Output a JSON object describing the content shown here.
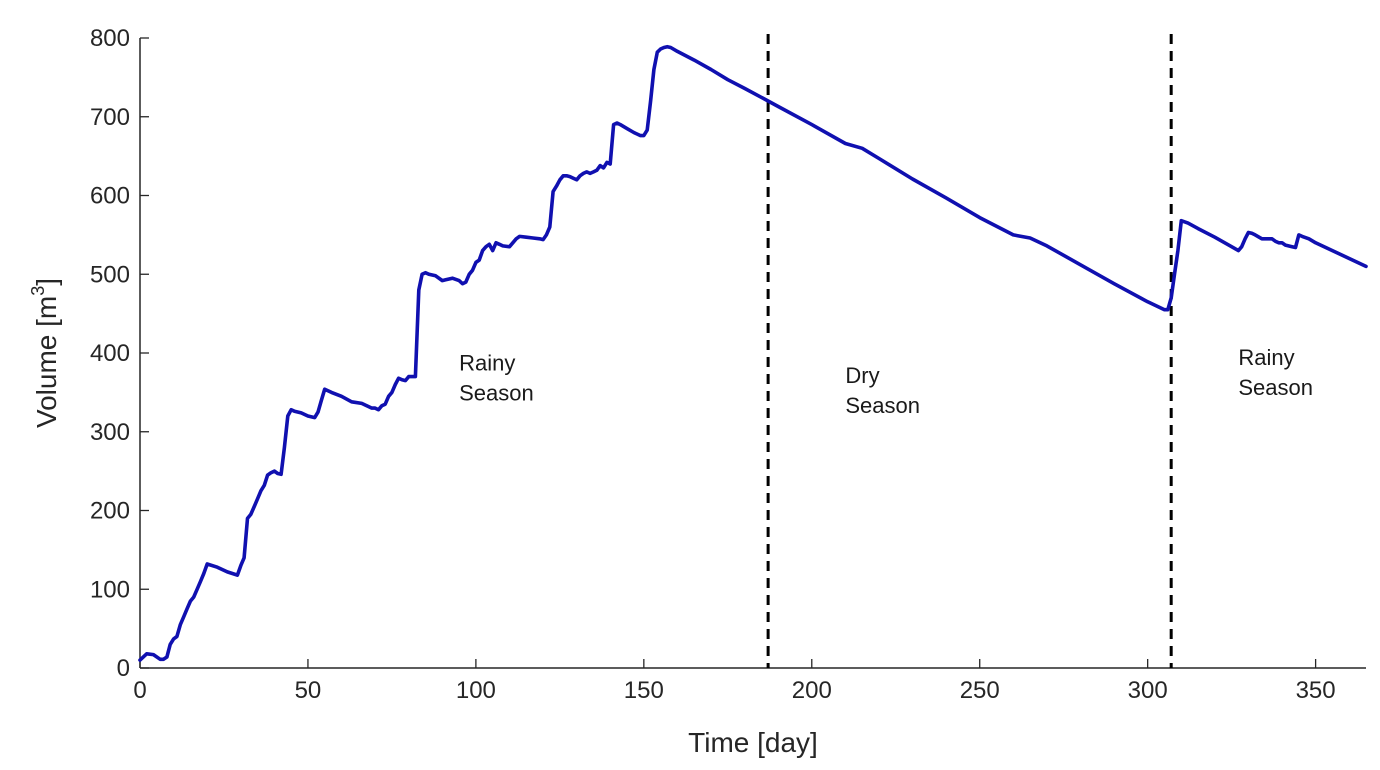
{
  "chart_data": {
    "type": "line",
    "title": "",
    "xlabel": "Time [day]",
    "ylabel_main": "Volume [m",
    "ylabel_sup": "3",
    "ylabel_tail": "]",
    "xlim": [
      0,
      365
    ],
    "ylim": [
      0,
      800
    ],
    "xticks": [
      0,
      50,
      100,
      150,
      200,
      250,
      300,
      350
    ],
    "yticks": [
      0,
      100,
      200,
      300,
      400,
      500,
      600,
      700,
      800
    ],
    "grid": false,
    "line_color": "#1010b0",
    "vline_color": "#000000",
    "vlines": [
      187,
      307
    ],
    "annotations": [
      {
        "lines": [
          "Rainy",
          "Season"
        ],
        "x": 95,
        "y": 378
      },
      {
        "lines": [
          "Dry",
          "Season"
        ],
        "x": 210,
        "y": 362
      },
      {
        "lines": [
          "Rainy",
          "Season"
        ],
        "x": 327,
        "y": 385
      }
    ],
    "series": [
      {
        "x": [
          0,
          2,
          4,
          6,
          7,
          8,
          9,
          10,
          11,
          12,
          13,
          14,
          15,
          16,
          17,
          18,
          19,
          20,
          23,
          26,
          29,
          30,
          31,
          32,
          33,
          34,
          35,
          36,
          37,
          38,
          39,
          40,
          41,
          42,
          43,
          44,
          45,
          46,
          48,
          50,
          52,
          53,
          54,
          55,
          57,
          60,
          63,
          66,
          69,
          70,
          71,
          72,
          73,
          74,
          75,
          76,
          77,
          78,
          79,
          80,
          81,
          82,
          83,
          84,
          85,
          86,
          88,
          90,
          91,
          93,
          95,
          96,
          97,
          98,
          99,
          100,
          101,
          102,
          103,
          104,
          105,
          106,
          107,
          108,
          110,
          111,
          112,
          113,
          115,
          117,
          119,
          120,
          121,
          122,
          123,
          124,
          125,
          126,
          127,
          128,
          129,
          130,
          131,
          132,
          133,
          134,
          135,
          136,
          137,
          138,
          139,
          140,
          141,
          142,
          143,
          145,
          147,
          149,
          150,
          151,
          152,
          153,
          154,
          155,
          156,
          157,
          158,
          160,
          165,
          170,
          175,
          180,
          187,
          190,
          200,
          210,
          215,
          220,
          230,
          240,
          250,
          260,
          265,
          270,
          280,
          290,
          300,
          305,
          306,
          307,
          308,
          309,
          310,
          312,
          315,
          320,
          325,
          327,
          328,
          329,
          330,
          331,
          332,
          334,
          335,
          336,
          337,
          338,
          339,
          340,
          341,
          343,
          344,
          345,
          346,
          348,
          350,
          355,
          360,
          365
        ],
        "y": [
          10,
          18,
          17,
          11,
          11,
          14,
          30,
          37,
          40,
          55,
          65,
          75,
          85,
          90,
          100,
          110,
          120,
          132,
          128,
          122,
          118,
          130,
          140,
          190,
          195,
          205,
          215,
          225,
          232,
          245,
          248,
          250,
          247,
          246,
          280,
          320,
          328,
          326,
          324,
          320,
          318,
          325,
          340,
          354,
          350,
          345,
          338,
          336,
          330,
          330,
          328,
          333,
          335,
          345,
          350,
          360,
          368,
          366,
          365,
          370,
          370,
          370,
          480,
          500,
          502,
          500,
          498,
          492,
          493,
          495,
          492,
          488,
          490,
          500,
          505,
          515,
          518,
          530,
          535,
          538,
          530,
          540,
          538,
          536,
          535,
          540,
          545,
          548,
          547,
          546,
          545,
          544,
          550,
          560,
          605,
          612,
          620,
          625,
          625,
          624,
          622,
          620,
          625,
          628,
          630,
          628,
          630,
          632,
          638,
          635,
          642,
          640,
          690,
          692,
          690,
          685,
          680,
          676,
          676,
          683,
          720,
          760,
          782,
          786,
          788,
          789,
          788,
          783,
          772,
          760,
          747,
          736,
          720,
          713,
          690,
          666,
          660,
          647,
          621,
          597,
          572,
          550,
          546,
          536,
          512,
          488,
          465,
          455,
          455,
          470,
          500,
          530,
          568,
          565,
          558,
          547,
          535,
          530,
          535,
          545,
          553,
          552,
          550,
          545,
          545,
          545,
          545,
          542,
          540,
          540,
          537,
          535,
          534,
          550,
          548,
          545,
          540,
          530,
          520,
          510
        ]
      }
    ]
  }
}
